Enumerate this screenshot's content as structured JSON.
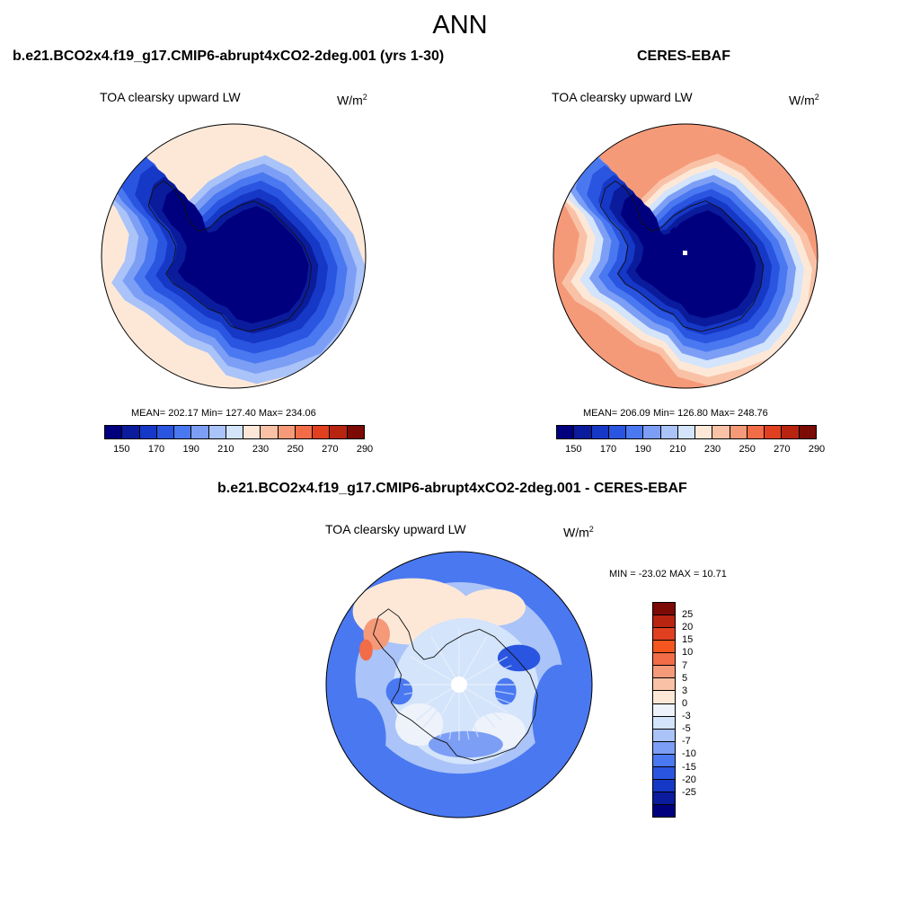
{
  "figure": {
    "title": "ANN"
  },
  "panel_model": {
    "title": "b.e21.BCO2x4.f19_g17.CMIP6-abrupt4xCO2-2deg.001 (yrs 1-30)",
    "variable": "TOA clearsky upward LW",
    "units_base": "W/m",
    "units_exp": "2",
    "stats": "MEAN= 202.17  Min= 127.40  Max= 234.06"
  },
  "panel_obs": {
    "title": "CERES-EBAF",
    "variable": "TOA clearsky upward LW",
    "units_base": "W/m",
    "units_exp": "2",
    "stats": "MEAN= 206.09  Min= 126.80  Max= 248.76"
  },
  "panel_diff": {
    "title": "b.e21.BCO2x4.f19_g17.CMIP6-abrupt4xCO2-2deg.001 - CERES-EBAF",
    "variable": "TOA clearsky upward LW",
    "units_base": "W/m",
    "units_exp": "2",
    "stats": "MIN = -23.02 MAX =  10.71"
  },
  "colorbar_field": {
    "colors": [
      "#00007f",
      "#0a1c9c",
      "#1638c6",
      "#2a55e0",
      "#4a78f0",
      "#7c9ef5",
      "#aac3f8",
      "#d3e4fb",
      "#fde8d8",
      "#f9c2a6",
      "#f59a79",
      "#f26c47",
      "#e0401f",
      "#b82410",
      "#7c0a05"
    ],
    "tick_labels": [
      "150",
      "170",
      "190",
      "210",
      "230",
      "250",
      "270",
      "290"
    ]
  },
  "colorbar_diff": {
    "colors": [
      "#7c0a05",
      "#b82410",
      "#e0401f",
      "#f5551e",
      "#f26c47",
      "#f59a79",
      "#f9c2a6",
      "#fde8d8",
      "#eef2fb",
      "#d3e4fb",
      "#aac3f8",
      "#7c9ef5",
      "#4a78f0",
      "#2a55e0",
      "#1638c6",
      "#0a1c9c",
      "#00007f"
    ],
    "tick_labels": [
      "25",
      "20",
      "15",
      "10",
      "7",
      "5",
      "3",
      "0",
      "-3",
      "-5",
      "-7",
      "-10",
      "-15",
      "-20",
      "-25"
    ]
  },
  "chart_data": [
    {
      "type": "heatmap",
      "title": "b.e21.BCO2x4.f19_g17.CMIP6-abrupt4xCO2-2deg.001 (yrs 1-30)",
      "subtitle": "ANN",
      "variable": "TOA clearsky upward LW",
      "units": "W/m2",
      "projection": "south-polar-stereographic",
      "mean": 202.17,
      "min": 127.4,
      "max": 234.06,
      "levels": [
        150,
        160,
        170,
        180,
        190,
        200,
        210,
        220,
        230,
        240,
        250,
        260,
        270,
        280,
        290
      ],
      "rings_from_pole": [
        130,
        140,
        150,
        160,
        170,
        180,
        190,
        205,
        222
      ]
    },
    {
      "type": "heatmap",
      "title": "CERES-EBAF",
      "subtitle": "ANN",
      "variable": "TOA clearsky upward LW",
      "units": "W/m2",
      "projection": "south-polar-stereographic",
      "mean": 206.09,
      "min": 126.8,
      "max": 248.76,
      "levels": [
        150,
        160,
        170,
        180,
        190,
        200,
        210,
        220,
        230,
        240,
        250,
        260,
        270,
        280,
        290
      ],
      "rings_from_pole": [
        130,
        140,
        150,
        160,
        170,
        180,
        195,
        210,
        225,
        238,
        248
      ]
    },
    {
      "type": "heatmap",
      "title": "b.e21.BCO2x4.f19_g17.CMIP6-abrupt4xCO2-2deg.001 - CERES-EBAF",
      "variable": "TOA clearsky upward LW",
      "units": "W/m2",
      "projection": "south-polar-stereographic",
      "min": -23.02,
      "max": 10.71,
      "levels": [
        -25,
        -20,
        -15,
        -10,
        -7,
        -5,
        -3,
        0,
        3,
        5,
        7,
        10,
        15,
        20,
        25
      ]
    }
  ]
}
